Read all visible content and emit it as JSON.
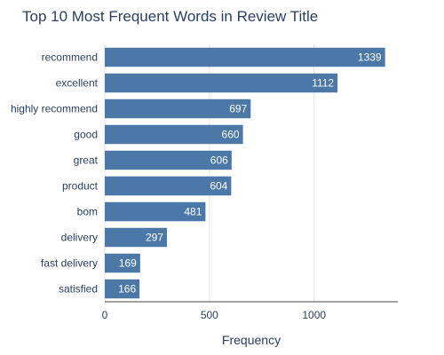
{
  "chart_data": {
    "type": "bar",
    "orientation": "horizontal",
    "title": "Top 10 Most Frequent Words in Review Title",
    "xlabel": "Frequency",
    "ylabel": "",
    "xlim": [
      0,
      1400
    ],
    "xticks": [
      0,
      500,
      1000
    ],
    "grid": true,
    "bar_color": "#4c78a8",
    "categories": [
      "recommend",
      "excellent",
      "highly recommend",
      "good",
      "great",
      "product",
      "bom",
      "delivery",
      "fast delivery",
      "satisfied"
    ],
    "values": [
      1339,
      1112,
      697,
      660,
      606,
      604,
      481,
      297,
      169,
      166
    ]
  }
}
